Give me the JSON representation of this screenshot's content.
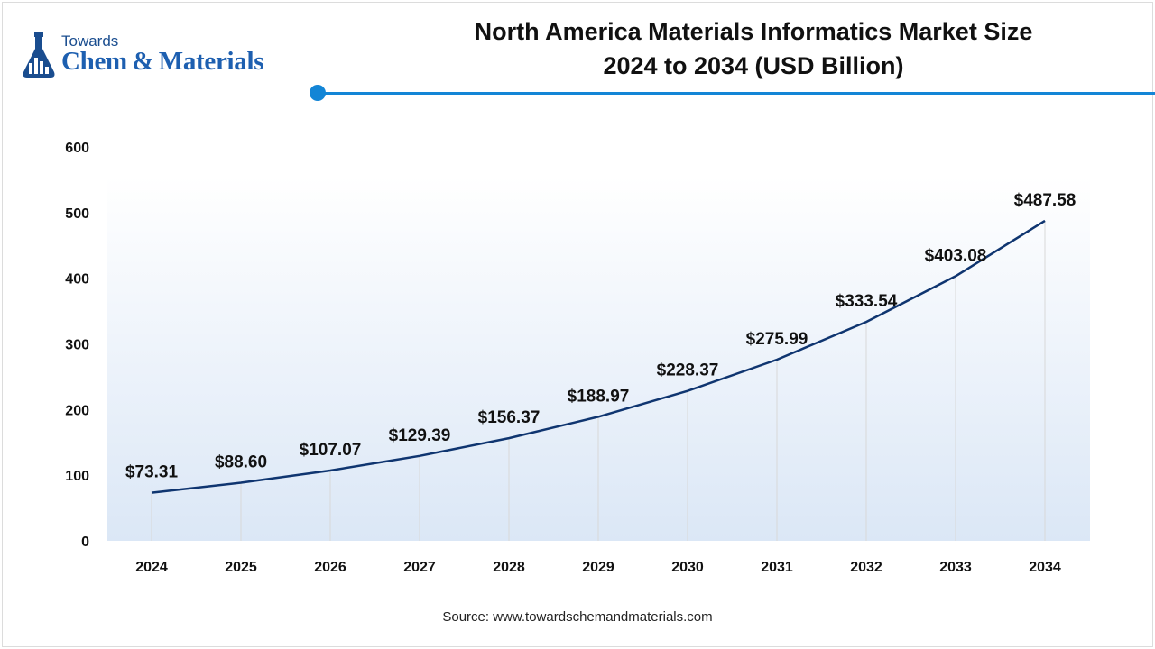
{
  "logo": {
    "top_text": "Towards",
    "main_text": "Chem & Materials"
  },
  "colors": {
    "line": "#0f3570",
    "accent": "#1385d6",
    "plot_top": "#ffffff",
    "plot_bottom": "#dbe7f6",
    "grid": "#d8d8d8"
  },
  "source_text": "Source: www.towardschemandmaterials.com",
  "chart_data": {
    "type": "line",
    "title": "North America Materials Informatics Market Size 2024 to 2034 (USD Billion)",
    "title_lines": [
      "North America Materials Informatics Market Size",
      "2024 to 2034 (USD Billion)"
    ],
    "categories": [
      "2024",
      "2025",
      "2026",
      "2027",
      "2028",
      "2029",
      "2030",
      "2031",
      "2032",
      "2033",
      "2034"
    ],
    "values": [
      73.31,
      88.6,
      107.07,
      129.39,
      156.37,
      188.97,
      228.37,
      275.99,
      333.54,
      403.08,
      487.58
    ],
    "value_labels": [
      "$73.31",
      "$88.60",
      "$107.07",
      "$129.39",
      "$156.37",
      "$188.97",
      "$228.37",
      "$275.99",
      "$333.54",
      "$403.08",
      "$487.58"
    ],
    "y_ticks": [
      0,
      100,
      200,
      300,
      400,
      500,
      600
    ],
    "ylim": [
      0,
      600
    ],
    "xlabel": "",
    "ylabel": "",
    "grid": "vertical drop lines",
    "legend": "none"
  }
}
